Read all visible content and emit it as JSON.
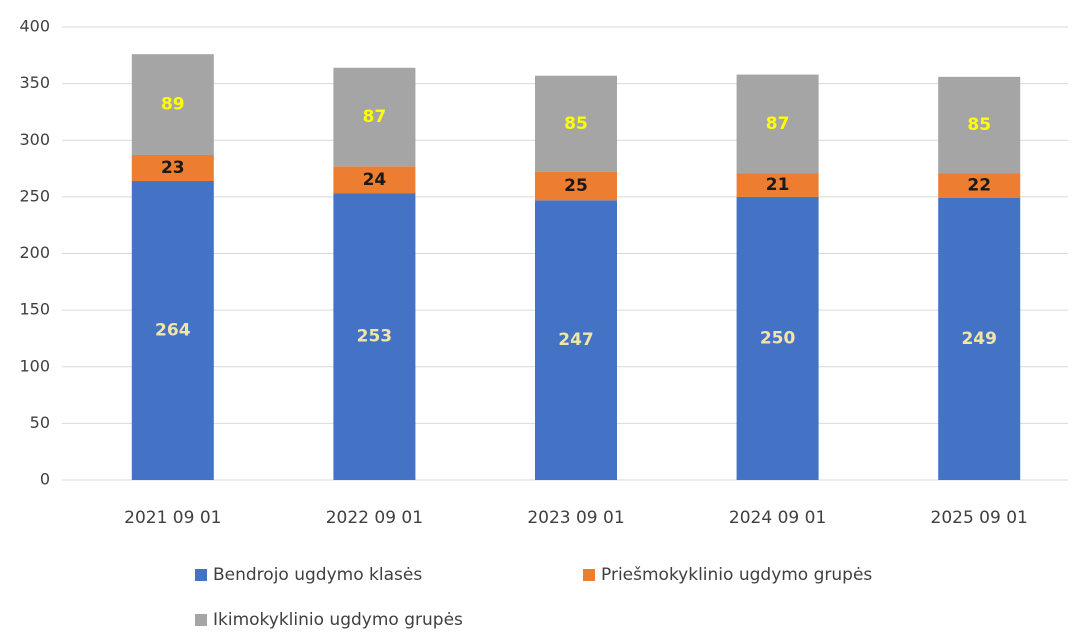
{
  "chart_data": {
    "type": "stacked_bar",
    "categories": [
      "2021 09 01",
      "2022 09 01",
      "2023 09 01",
      "2024 09 01",
      "2025 09 01"
    ],
    "series": [
      {
        "name": "Bendrojo ugdymo klasės",
        "color": "#4472c4",
        "label_color": "#f2e6a6",
        "values": [
          264,
          253,
          247,
          250,
          249
        ]
      },
      {
        "name": "Priešmokyklinio ugdymo grupės",
        "color": "#ed7d31",
        "label_color": "#1a1a1a",
        "values": [
          23,
          24,
          25,
          21,
          22
        ]
      },
      {
        "name": "Ikimokyklinio ugdymo grupės",
        "color": "#a5a5a5",
        "label_color": "#ffff00",
        "values": [
          89,
          87,
          85,
          87,
          85
        ]
      }
    ],
    "ylim": [
      0,
      400
    ],
    "yticks": [
      0,
      50,
      100,
      150,
      200,
      250,
      300,
      350,
      400
    ],
    "grid": true
  }
}
